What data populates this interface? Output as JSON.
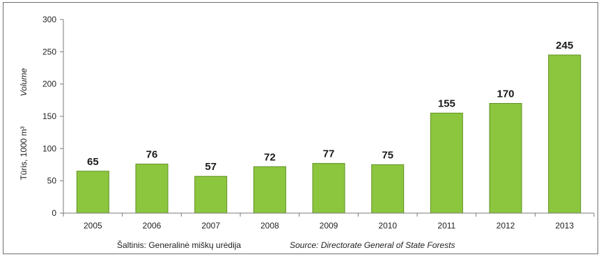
{
  "chart_data": {
    "type": "bar",
    "categories": [
      "2005",
      "2006",
      "2007",
      "2008",
      "2009",
      "2010",
      "2011",
      "2012",
      "2013"
    ],
    "values": [
      65,
      76,
      57,
      72,
      77,
      75,
      155,
      170,
      245
    ],
    "ylabel": "Tūris, 1000 m³",
    "ylabel_en": "Volume",
    "ylim": [
      0,
      300
    ],
    "yticks": [
      "0",
      "50",
      "100",
      "150",
      "200",
      "250",
      "300"
    ],
    "grid": false,
    "bar_color": "#8cc63f",
    "bar_edge_color": "#5e8f1f",
    "source_lt": "Šaltinis: Generalinė miškų urėdija",
    "source_en": "Source: Directorate General of State Forests"
  }
}
